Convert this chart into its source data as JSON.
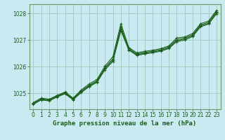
{
  "title": "Graphe pression niveau de la mer (hPa)",
  "bg_color": "#c8eaf0",
  "grid_color": "#a0c8b8",
  "line_color": "#1a5e1a",
  "xlabel_color": "#1a5e1a",
  "tick_color": "#1a5e1a",
  "spine_color": "#6a9a6a",
  "xlim": [
    -0.5,
    23.5
  ],
  "ylim": [
    1024.4,
    1028.35
  ],
  "yticks": [
    1025,
    1026,
    1027,
    1028
  ],
  "xticks": [
    0,
    1,
    2,
    3,
    4,
    5,
    6,
    7,
    8,
    9,
    10,
    11,
    12,
    13,
    14,
    15,
    16,
    17,
    18,
    19,
    20,
    21,
    22,
    23
  ],
  "series": [
    [
      1024.65,
      1024.82,
      1024.78,
      1024.92,
      1025.05,
      1024.82,
      1025.12,
      1025.35,
      1025.52,
      1026.02,
      1026.38,
      1027.62,
      1026.72,
      1026.52,
      1026.58,
      1026.62,
      1026.68,
      1026.78,
      1027.08,
      1027.12,
      1027.25,
      1027.62,
      1027.72,
      1028.12
    ],
    [
      1024.62,
      1024.79,
      1024.75,
      1024.9,
      1025.02,
      1024.79,
      1025.08,
      1025.3,
      1025.47,
      1025.96,
      1026.3,
      1027.5,
      1026.68,
      1026.48,
      1026.54,
      1026.58,
      1026.64,
      1026.74,
      1027.02,
      1027.08,
      1027.2,
      1027.57,
      1027.67,
      1028.07
    ],
    [
      1024.6,
      1024.77,
      1024.73,
      1024.88,
      1025.0,
      1024.77,
      1025.05,
      1025.27,
      1025.44,
      1025.92,
      1026.25,
      1027.42,
      1026.65,
      1026.45,
      1026.51,
      1026.55,
      1026.61,
      1026.71,
      1026.98,
      1027.04,
      1027.17,
      1027.54,
      1027.63,
      1028.03
    ],
    [
      1024.58,
      1024.75,
      1024.71,
      1024.86,
      1024.98,
      1024.75,
      1025.02,
      1025.24,
      1025.41,
      1025.88,
      1026.2,
      1027.35,
      1026.62,
      1026.42,
      1026.48,
      1026.52,
      1026.58,
      1026.68,
      1026.94,
      1027.0,
      1027.13,
      1027.5,
      1027.6,
      1027.99
    ]
  ]
}
